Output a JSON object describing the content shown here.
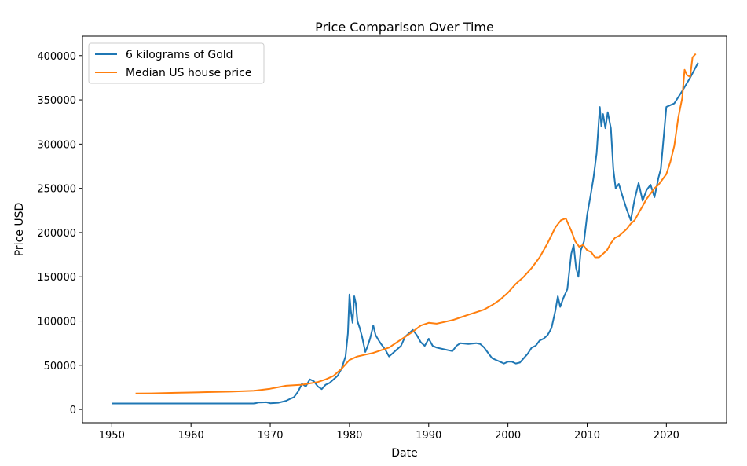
{
  "chart_data": {
    "type": "line",
    "title": "Price Comparison Over Time",
    "xlabel": "Date",
    "ylabel": "Price USD",
    "xlim": [
      1946.3,
      2027.6
    ],
    "ylim": [
      -15000,
      422000
    ],
    "x_ticks": [
      1950,
      1960,
      1970,
      1980,
      1990,
      2000,
      2010,
      2020
    ],
    "y_ticks": [
      0,
      50000,
      100000,
      150000,
      200000,
      250000,
      300000,
      350000,
      400000
    ],
    "grid": false,
    "legend_position": "top-left",
    "series": [
      {
        "name": "6 kilograms of Gold",
        "color": "#1f77b4",
        "points": [
          [
            1950,
            6800
          ],
          [
            1955,
            6800
          ],
          [
            1960,
            6800
          ],
          [
            1965,
            6800
          ],
          [
            1968,
            6800
          ],
          [
            1968.5,
            7800
          ],
          [
            1969,
            8000
          ],
          [
            1969.5,
            8200
          ],
          [
            1970,
            7000
          ],
          [
            1971,
            7600
          ],
          [
            1972,
            9800
          ],
          [
            1972.5,
            12000
          ],
          [
            1973,
            14000
          ],
          [
            1973.5,
            20000
          ],
          [
            1974,
            29000
          ],
          [
            1974.5,
            26000
          ],
          [
            1975,
            34000
          ],
          [
            1975.5,
            32000
          ],
          [
            1976,
            26000
          ],
          [
            1976.5,
            23000
          ],
          [
            1977,
            28000
          ],
          [
            1977.5,
            30000
          ],
          [
            1978,
            34000
          ],
          [
            1978.5,
            38000
          ],
          [
            1979,
            46000
          ],
          [
            1979.5,
            60000
          ],
          [
            1979.8,
            86000
          ],
          [
            1980,
            130000
          ],
          [
            1980.2,
            110000
          ],
          [
            1980.4,
            98000
          ],
          [
            1980.6,
            128000
          ],
          [
            1980.8,
            120000
          ],
          [
            1981,
            100000
          ],
          [
            1981.3,
            92000
          ],
          [
            1981.6,
            82000
          ],
          [
            1982,
            65000
          ],
          [
            1982.3,
            72000
          ],
          [
            1982.6,
            80000
          ],
          [
            1983,
            95000
          ],
          [
            1983.3,
            84000
          ],
          [
            1983.7,
            78000
          ],
          [
            1984,
            74000
          ],
          [
            1984.5,
            68000
          ],
          [
            1985,
            60000
          ],
          [
            1985.5,
            64000
          ],
          [
            1986,
            68000
          ],
          [
            1986.5,
            72000
          ],
          [
            1987,
            82000
          ],
          [
            1987.5,
            86000
          ],
          [
            1988,
            90000
          ],
          [
            1988.5,
            84000
          ],
          [
            1989,
            76000
          ],
          [
            1989.5,
            72000
          ],
          [
            1990,
            80000
          ],
          [
            1990.5,
            72000
          ],
          [
            1991,
            70000
          ],
          [
            1992,
            68000
          ],
          [
            1993,
            66000
          ],
          [
            1993.5,
            72000
          ],
          [
            1994,
            75000
          ],
          [
            1995,
            74000
          ],
          [
            1996,
            75000
          ],
          [
            1996.5,
            74000
          ],
          [
            1997,
            70000
          ],
          [
            1997.5,
            64000
          ],
          [
            1998,
            58000
          ],
          [
            1998.5,
            56000
          ],
          [
            1999,
            54000
          ],
          [
            1999.5,
            52000
          ],
          [
            2000,
            54000
          ],
          [
            2000.5,
            54000
          ],
          [
            2001,
            52000
          ],
          [
            2001.5,
            53000
          ],
          [
            2002,
            58000
          ],
          [
            2002.5,
            63000
          ],
          [
            2003,
            70000
          ],
          [
            2003.5,
            72000
          ],
          [
            2004,
            78000
          ],
          [
            2004.5,
            80000
          ],
          [
            2005,
            84000
          ],
          [
            2005.5,
            92000
          ],
          [
            2006,
            112000
          ],
          [
            2006.3,
            128000
          ],
          [
            2006.6,
            116000
          ],
          [
            2007,
            126000
          ],
          [
            2007.5,
            136000
          ],
          [
            2008,
            176000
          ],
          [
            2008.3,
            186000
          ],
          [
            2008.6,
            160000
          ],
          [
            2008.9,
            150000
          ],
          [
            2009.2,
            180000
          ],
          [
            2009.6,
            190000
          ],
          [
            2010,
            220000
          ],
          [
            2010.4,
            240000
          ],
          [
            2010.8,
            262000
          ],
          [
            2011.2,
            290000
          ],
          [
            2011.6,
            342000
          ],
          [
            2011.8,
            320000
          ],
          [
            2012,
            334000
          ],
          [
            2012.3,
            318000
          ],
          [
            2012.6,
            336000
          ],
          [
            2013,
            318000
          ],
          [
            2013.3,
            272000
          ],
          [
            2013.6,
            250000
          ],
          [
            2014,
            255000
          ],
          [
            2014.5,
            240000
          ],
          [
            2015,
            226000
          ],
          [
            2015.5,
            214000
          ],
          [
            2016,
            238000
          ],
          [
            2016.5,
            256000
          ],
          [
            2017,
            236000
          ],
          [
            2017.5,
            248000
          ],
          [
            2018,
            254000
          ],
          [
            2018.5,
            240000
          ],
          [
            2019,
            262000
          ],
          [
            2019.3,
            272000
          ],
          [
            2020,
            342000
          ],
          [
            2021,
            346000
          ],
          [
            2022,
            360000
          ],
          [
            2023,
            375000
          ],
          [
            2024,
            392000
          ]
        ]
      },
      {
        "name": "Median US house price",
        "color": "#ff7f0e",
        "points": [
          [
            1953,
            18000
          ],
          [
            1955,
            18200
          ],
          [
            1958,
            18800
          ],
          [
            1960,
            19200
          ],
          [
            1962,
            19600
          ],
          [
            1965,
            20200
          ],
          [
            1968,
            21200
          ],
          [
            1970,
            23500
          ],
          [
            1972,
            26800
          ],
          [
            1974,
            28000
          ],
          [
            1976,
            31000
          ],
          [
            1977,
            34000
          ],
          [
            1978,
            38000
          ],
          [
            1979,
            46000
          ],
          [
            1980,
            56000
          ],
          [
            1981,
            60000
          ],
          [
            1982,
            62000
          ],
          [
            1983,
            64000
          ],
          [
            1984,
            67000
          ],
          [
            1985,
            70000
          ],
          [
            1986,
            76000
          ],
          [
            1987,
            82000
          ],
          [
            1988,
            88000
          ],
          [
            1989,
            95000
          ],
          [
            1990,
            98000
          ],
          [
            1991,
            97000
          ],
          [
            1992,
            99000
          ],
          [
            1993,
            101000
          ],
          [
            1994,
            104000
          ],
          [
            1995,
            107000
          ],
          [
            1996,
            110000
          ],
          [
            1997,
            113000
          ],
          [
            1998,
            118000
          ],
          [
            1999,
            124000
          ],
          [
            2000,
            132000
          ],
          [
            2001,
            142000
          ],
          [
            2002,
            150000
          ],
          [
            2003,
            160000
          ],
          [
            2004,
            172000
          ],
          [
            2005,
            188000
          ],
          [
            2006,
            206000
          ],
          [
            2006.7,
            214000
          ],
          [
            2007.3,
            216000
          ],
          [
            2008,
            202000
          ],
          [
            2008.5,
            190000
          ],
          [
            2009,
            184000
          ],
          [
            2009.5,
            186000
          ],
          [
            2010,
            180000
          ],
          [
            2010.5,
            178000
          ],
          [
            2011,
            172000
          ],
          [
            2011.5,
            172000
          ],
          [
            2012,
            176000
          ],
          [
            2012.5,
            180000
          ],
          [
            2013,
            188000
          ],
          [
            2013.5,
            194000
          ],
          [
            2014,
            196000
          ],
          [
            2014.5,
            200000
          ],
          [
            2015,
            204000
          ],
          [
            2015.5,
            210000
          ],
          [
            2016,
            214000
          ],
          [
            2016.5,
            222000
          ],
          [
            2017,
            230000
          ],
          [
            2017.5,
            238000
          ],
          [
            2018,
            244000
          ],
          [
            2018.5,
            250000
          ],
          [
            2019,
            254000
          ],
          [
            2019.5,
            260000
          ],
          [
            2020,
            266000
          ],
          [
            2020.5,
            280000
          ],
          [
            2021,
            298000
          ],
          [
            2021.5,
            330000
          ],
          [
            2022,
            352000
          ],
          [
            2022.3,
            384000
          ],
          [
            2022.6,
            378000
          ],
          [
            2023,
            376000
          ],
          [
            2023.3,
            398000
          ],
          [
            2023.7,
            402000
          ]
        ]
      }
    ]
  }
}
